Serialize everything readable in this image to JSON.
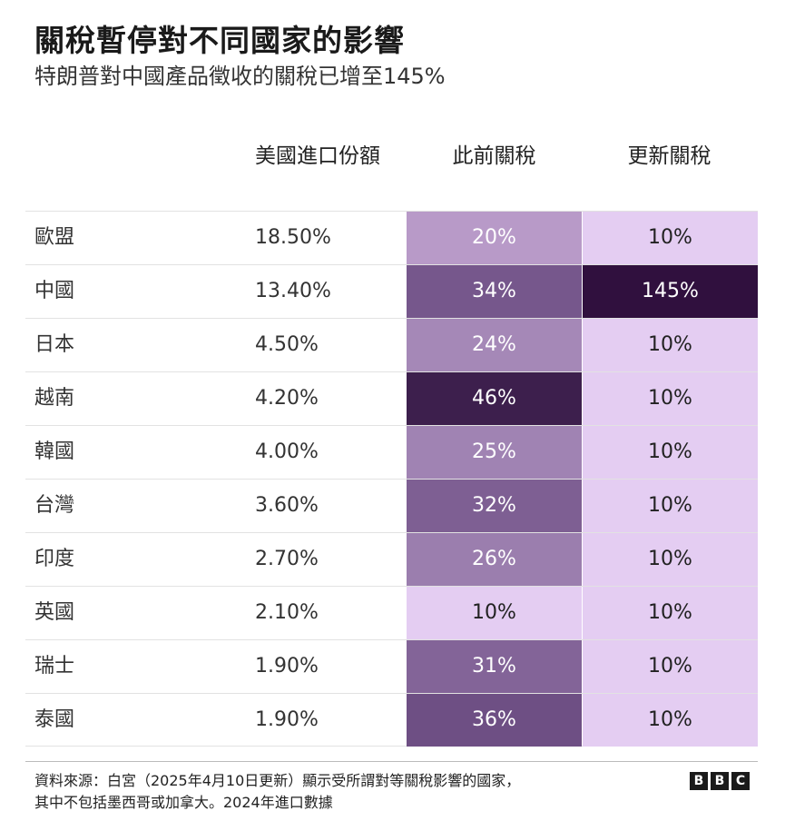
{
  "header": {
    "title": "關稅暫停對不同國家的影響",
    "subtitle": "特朗普對中國產品徵收的關稅已增至145%"
  },
  "chart_data": {
    "type": "table",
    "columns": [
      "",
      "美國進口份額",
      "此前關稅",
      "更新關稅"
    ],
    "rows": [
      {
        "country": "歐盟",
        "share": "18.50%",
        "prev": "20%",
        "prev_value": 20,
        "new": "10%",
        "new_value": 10
      },
      {
        "country": "中國",
        "share": "13.40%",
        "prev": "34%",
        "prev_value": 34,
        "new": "145%",
        "new_value": 145
      },
      {
        "country": "日本",
        "share": "4.50%",
        "prev": "24%",
        "prev_value": 24,
        "new": "10%",
        "new_value": 10
      },
      {
        "country": "越南",
        "share": "4.20%",
        "prev": "46%",
        "prev_value": 46,
        "new": "10%",
        "new_value": 10
      },
      {
        "country": "韓國",
        "share": "4.00%",
        "prev": "25%",
        "prev_value": 25,
        "new": "10%",
        "new_value": 10
      },
      {
        "country": "台灣",
        "share": "3.60%",
        "prev": "32%",
        "prev_value": 32,
        "new": "10%",
        "new_value": 10
      },
      {
        "country": "印度",
        "share": "2.70%",
        "prev": "26%",
        "prev_value": 26,
        "new": "10%",
        "new_value": 10
      },
      {
        "country": "英國",
        "share": "2.10%",
        "prev": "10%",
        "prev_value": 10,
        "new": "10%",
        "new_value": 10
      },
      {
        "country": "瑞士",
        "share": "1.90%",
        "prev": "31%",
        "prev_value": 31,
        "new": "10%",
        "new_value": 10
      },
      {
        "country": "泰國",
        "share": "1.90%",
        "prev": "36%",
        "prev_value": 36,
        "new": "10%",
        "new_value": 10
      }
    ]
  },
  "footer": {
    "source_line1": "資料來源：白宮（2025年4月10日更新）顯示受所謂對等關稅影響的國家，",
    "source_line2": "其中不包括墨西哥或加拿大。2024年進口數據",
    "logo_letters": [
      "B",
      "B",
      "C"
    ]
  },
  "colors": {
    "heat_low": "#e4cdf2",
    "heat_mid_20": "#b89ac8",
    "heat_24": "#a688b8",
    "heat_26": "#9c7eae",
    "heat_31": "#86679a",
    "heat_34": "#7a5b8f",
    "heat_36": "#6e4f84",
    "heat_46": "#3d1f4d",
    "heat_145": "#30103e"
  }
}
